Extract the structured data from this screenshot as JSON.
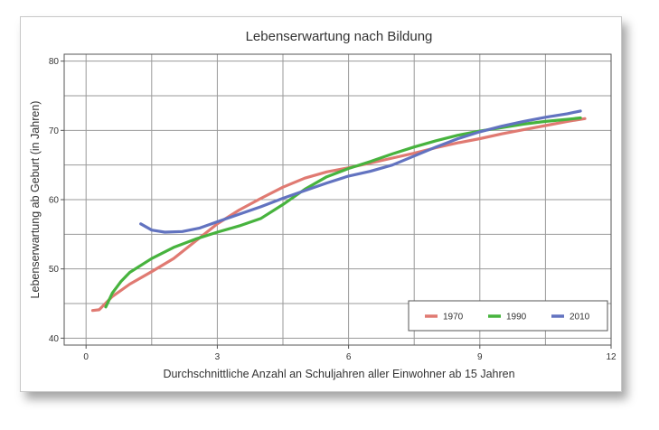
{
  "chart_data": {
    "type": "line",
    "title": "Lebenserwartung nach Bildung",
    "xlabel": "Durchschnittliche Anzahl an Schuljahren aller Einwohner ab 15 Jahren",
    "ylabel": "Lebenserwartung ab Geburt (in Jahren)",
    "xlim": [
      -0.5,
      12
    ],
    "ylim": [
      39,
      81
    ],
    "xticks": [
      0,
      3,
      6,
      9,
      12
    ],
    "yticks": [
      40,
      50,
      60,
      70,
      80
    ],
    "grid": true,
    "legend_position": "bottom-right",
    "series": [
      {
        "name": "1970",
        "color": "#e07a72",
        "points": [
          [
            0.15,
            44
          ],
          [
            0.3,
            44.1
          ],
          [
            0.6,
            46
          ],
          [
            1.0,
            47.8
          ],
          [
            1.5,
            49.6
          ],
          [
            2.0,
            51.5
          ],
          [
            2.5,
            54
          ],
          [
            3.0,
            56.5
          ],
          [
            3.5,
            58.5
          ],
          [
            4.0,
            60.2
          ],
          [
            4.5,
            61.8
          ],
          [
            5.0,
            63.1
          ],
          [
            5.5,
            64
          ],
          [
            6.0,
            64.6
          ],
          [
            6.5,
            65.3
          ],
          [
            7.0,
            66
          ],
          [
            7.5,
            66.7
          ],
          [
            8.0,
            67.5
          ],
          [
            8.5,
            68.2
          ],
          [
            9.0,
            68.8
          ],
          [
            9.5,
            69.5
          ],
          [
            10.0,
            70.1
          ],
          [
            10.5,
            70.7
          ],
          [
            11.0,
            71.3
          ],
          [
            11.4,
            71.7
          ]
        ]
      },
      {
        "name": "1990",
        "color": "#47b33e",
        "points": [
          [
            0.45,
            44.5
          ],
          [
            0.6,
            46.5
          ],
          [
            0.8,
            48.2
          ],
          [
            1.0,
            49.5
          ],
          [
            1.5,
            51.5
          ],
          [
            2.0,
            53.1
          ],
          [
            2.5,
            54.3
          ],
          [
            3.0,
            55.3
          ],
          [
            3.5,
            56.2
          ],
          [
            4.0,
            57.3
          ],
          [
            4.5,
            59.3
          ],
          [
            5.0,
            61.5
          ],
          [
            5.5,
            63.3
          ],
          [
            6.0,
            64.5
          ],
          [
            6.5,
            65.5
          ],
          [
            7.0,
            66.6
          ],
          [
            7.5,
            67.6
          ],
          [
            8.0,
            68.5
          ],
          [
            8.5,
            69.3
          ],
          [
            9.0,
            69.9
          ],
          [
            9.5,
            70.4
          ],
          [
            10.0,
            70.9
          ],
          [
            10.5,
            71.3
          ],
          [
            11.0,
            71.6
          ],
          [
            11.3,
            71.8
          ]
        ]
      },
      {
        "name": "2010",
        "color": "#6273c0",
        "points": [
          [
            1.25,
            56.5
          ],
          [
            1.5,
            55.6
          ],
          [
            1.8,
            55.3
          ],
          [
            2.2,
            55.4
          ],
          [
            2.6,
            55.9
          ],
          [
            3.0,
            56.8
          ],
          [
            3.5,
            57.9
          ],
          [
            4.0,
            59
          ],
          [
            4.5,
            60.2
          ],
          [
            5.0,
            61.3
          ],
          [
            5.5,
            62.4
          ],
          [
            6.0,
            63.4
          ],
          [
            6.5,
            64.1
          ],
          [
            7.0,
            65
          ],
          [
            7.5,
            66.3
          ],
          [
            8.0,
            67.6
          ],
          [
            8.5,
            68.8
          ],
          [
            9.0,
            69.8
          ],
          [
            9.5,
            70.6
          ],
          [
            10.0,
            71.3
          ],
          [
            10.5,
            71.9
          ],
          [
            11.0,
            72.4
          ],
          [
            11.3,
            72.8
          ]
        ]
      }
    ]
  }
}
